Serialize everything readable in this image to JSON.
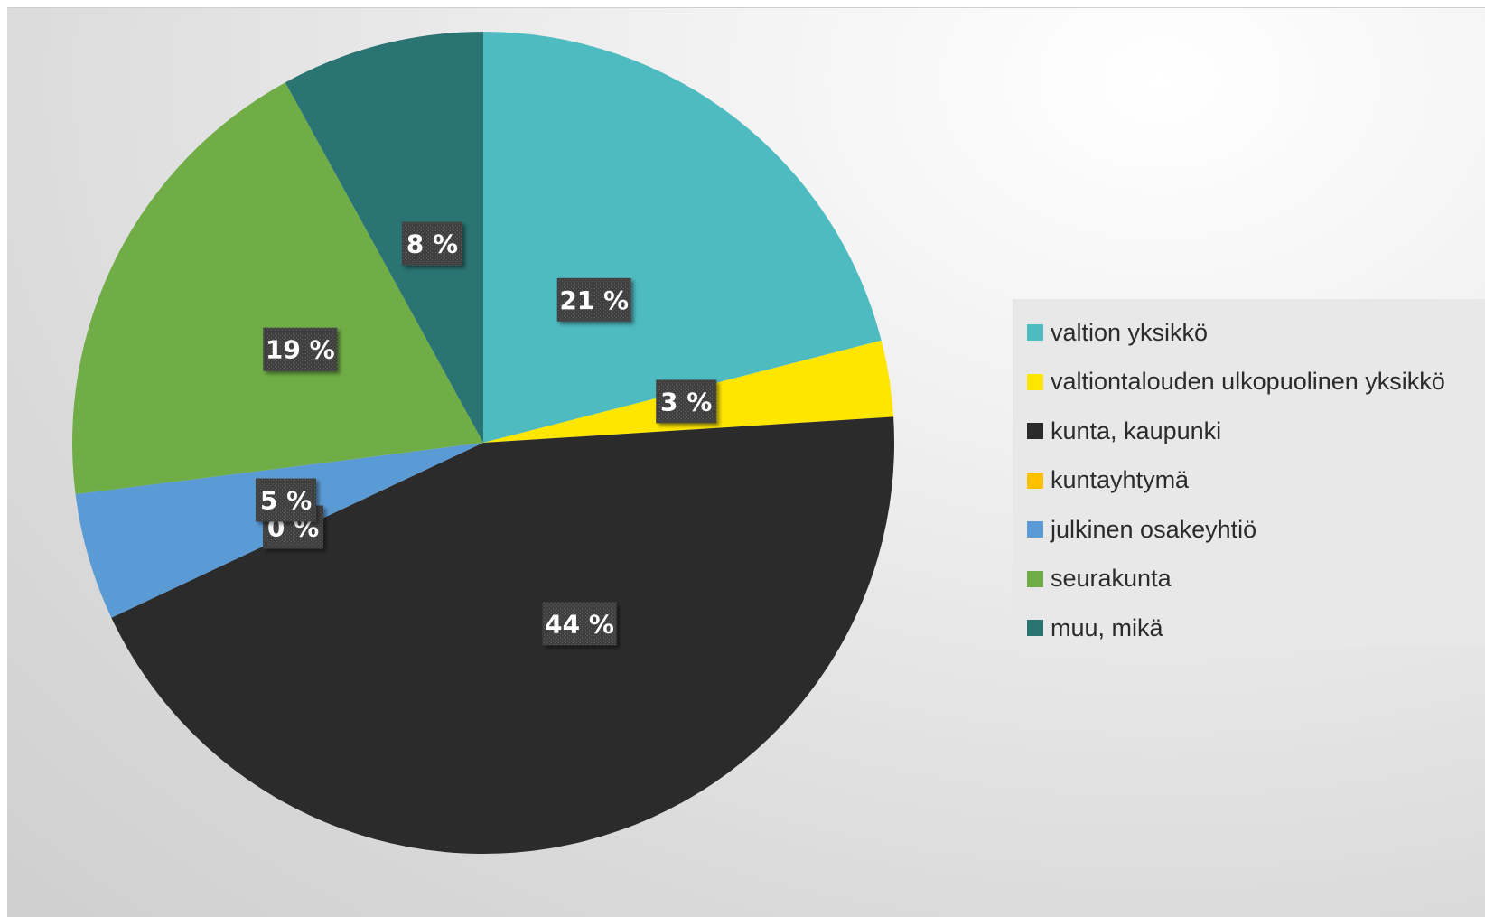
{
  "chart_data": {
    "type": "pie",
    "title": "",
    "categories": [
      "valtion yksikkö",
      "valtiontalouden ulkopuolinen yksikkö",
      "kunta, kaupunki",
      "kuntayhtymä",
      "julkinen osakeyhtiö",
      "seurakunta",
      "muu, mikä"
    ],
    "values": [
      21,
      3,
      44,
      0,
      5,
      19,
      8
    ],
    "data_labels": [
      "21 %",
      "3 %",
      "44 %",
      "0 %",
      "5 %",
      "19 %",
      "8 %"
    ],
    "colors": [
      "#4EBBC1",
      "#FFE600",
      "#2B2B2B",
      "#FFC000",
      "#5B9BD5",
      "#70AD47",
      "#2A7474"
    ],
    "legend_position": "right",
    "start_angle": "12 o'clock",
    "direction": "clockwise"
  }
}
